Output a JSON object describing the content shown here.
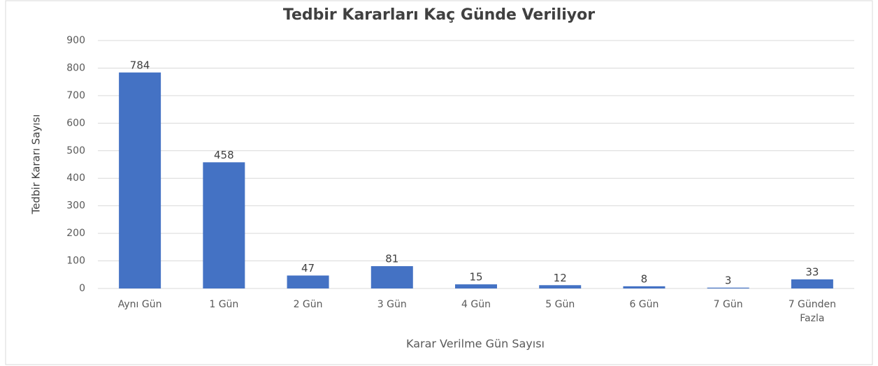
{
  "chart_data": {
    "type": "bar",
    "title": "Tedbir Kararları Kaç Günde Veriliyor",
    "x_label": "Karar Verilme Gün Sayısı",
    "y_label": "Tedbir Kararı Sayısı",
    "categories": [
      "Aynı Gün",
      "1 Gün",
      "2 Gün",
      "3 Gün",
      "4 Gün",
      "5 Gün",
      "6 Gün",
      "7 Gün",
      "7 Günden Fazla"
    ],
    "values": [
      784,
      458,
      47,
      81,
      15,
      12,
      8,
      3,
      33
    ],
    "color": "#4472c4",
    "ylim": [
      0,
      900
    ],
    "yticks": [
      0,
      100,
      200,
      300,
      400,
      500,
      600,
      700,
      800,
      900
    ],
    "grid": true
  }
}
